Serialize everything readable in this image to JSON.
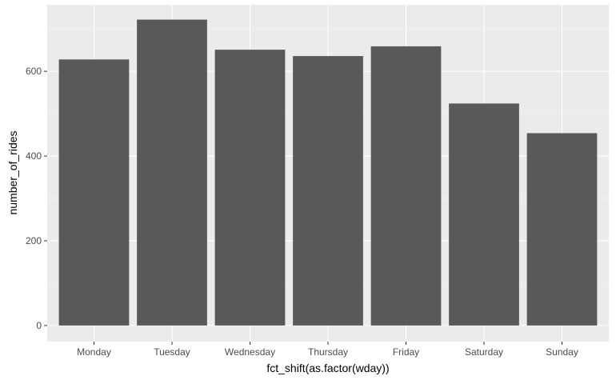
{
  "chart_data": {
    "type": "bar",
    "title": "",
    "xlabel": "fct_shift(as.factor(wday))",
    "ylabel": "number_of_rides",
    "categories": [
      "Monday",
      "Tuesday",
      "Wednesday",
      "Thursday",
      "Friday",
      "Saturday",
      "Sunday"
    ],
    "values": [
      628,
      722,
      651,
      636,
      659,
      524,
      454
    ],
    "ylim": [
      -38,
      757
    ],
    "yticks": [
      0,
      200,
      400,
      600
    ],
    "ytick_labels": [
      "0",
      "200",
      "400",
      "600"
    ],
    "grid": true,
    "legend": "none",
    "colors": {
      "bar": "#595959",
      "panel": "#ebebeb",
      "grid_major": "#ffffff",
      "grid_minor": "#f5f5f5"
    }
  }
}
